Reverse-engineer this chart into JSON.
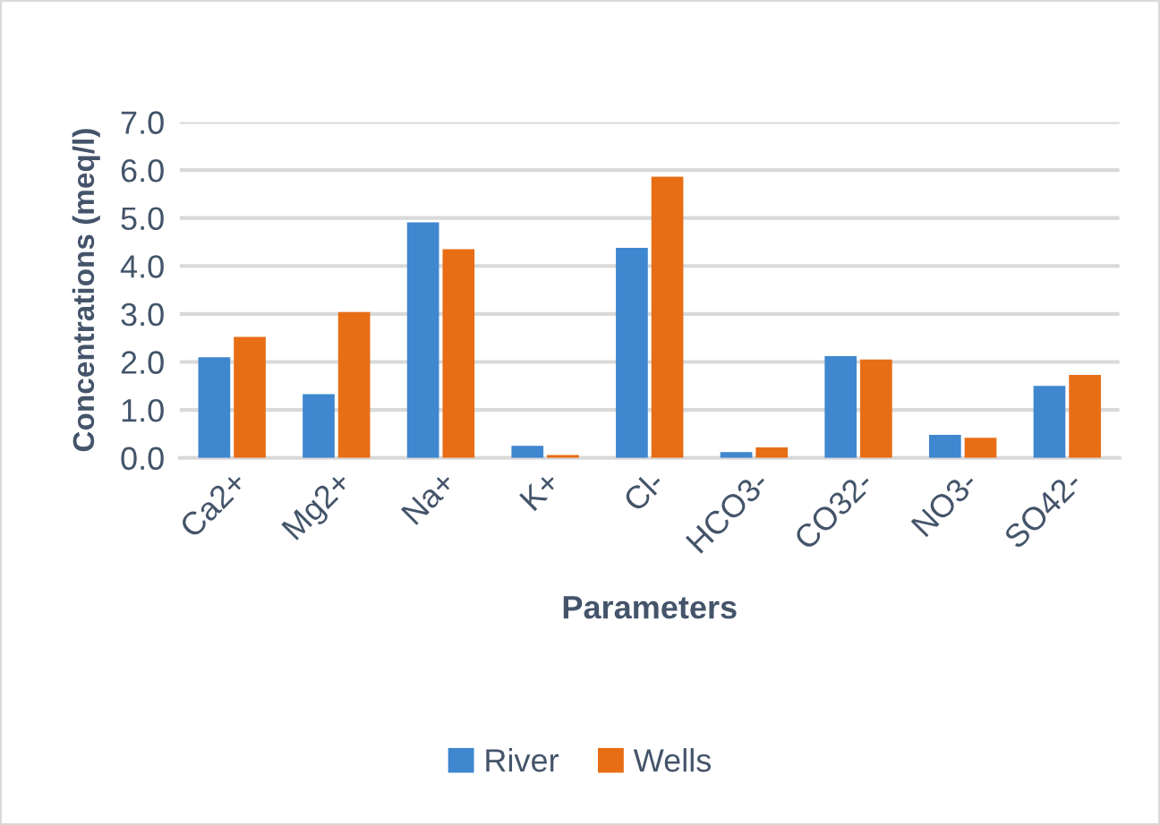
{
  "chart_data": {
    "type": "bar",
    "ylabel": "Concentrations (meq/l)",
    "xlabel": "Parameters",
    "categories": [
      "Ca2+",
      "Mg2+",
      "Na+",
      "K+",
      "Cl-",
      "HCO3-",
      "CO32-",
      "NO3-",
      "SO42-"
    ],
    "series": [
      {
        "name": "River",
        "color": "#3f87cf",
        "values": [
          2.1,
          1.33,
          4.91,
          0.25,
          4.38,
          0.12,
          2.12,
          0.48,
          1.5
        ]
      },
      {
        "name": "Wells",
        "color": "#e86e16",
        "values": [
          2.52,
          3.04,
          4.35,
          0.06,
          5.86,
          0.22,
          2.05,
          0.42,
          1.73
        ]
      }
    ],
    "ylim": [
      0,
      7
    ],
    "yticks": [
      {
        "value": 0,
        "label": "0.0"
      },
      {
        "value": 1,
        "label": "1.0"
      },
      {
        "value": 2,
        "label": "2.0"
      },
      {
        "value": 3,
        "label": "3.0"
      },
      {
        "value": 4,
        "label": "4.0"
      },
      {
        "value": 5,
        "label": "5.0"
      },
      {
        "value": 6,
        "label": "6.0"
      },
      {
        "value": 7,
        "label": "7.0"
      }
    ],
    "grid": "y",
    "legend": "bottom"
  }
}
